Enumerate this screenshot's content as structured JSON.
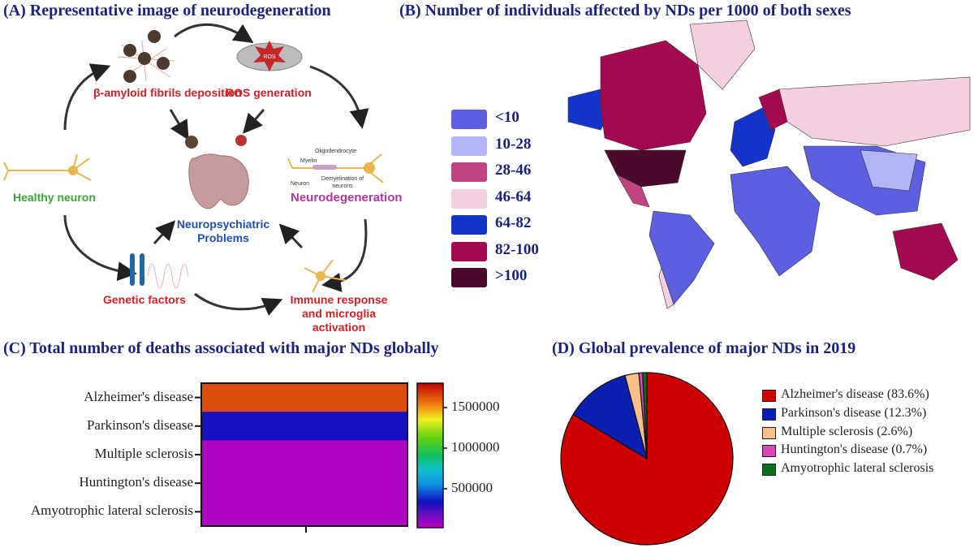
{
  "panel_a": {
    "title": "(A) Representative image of neurodegeneration",
    "labels": {
      "amyloid": "β-amyloid fibrils deposition",
      "ros": "ROS generation",
      "ros_badge": "ROS",
      "healthy": "Healthy neuron",
      "neurodeg": "Neurodegeneration",
      "neuropsych": "Neuropsychiatric Problems",
      "genetic": "Genetic factors",
      "immune": "Immune response and microglia activation",
      "oligo": "Oligodendrocyte",
      "myelin": "Myelin",
      "neuron": "Neuron",
      "demyel": "Demyelination of neurons"
    }
  },
  "panel_b": {
    "title": "(B) Number of individuals affected by NDs per 1000 of both sexes",
    "legend": [
      {
        "label": "<10",
        "color": "#5b5fe0"
      },
      {
        "label": "10-28",
        "color": "#b3b3f7"
      },
      {
        "label": "28-46",
        "color": "#c2447e"
      },
      {
        "label": "46-64",
        "color": "#f3cfdf"
      },
      {
        "label": "64-82",
        "color": "#1433c8"
      },
      {
        "label": "82-100",
        "color": "#a3094f"
      },
      {
        "label": ">100",
        "color": "#4a0a2c"
      }
    ]
  },
  "chart_data": [
    {
      "type": "heatmap",
      "title": "(C) Total number of deaths associated with major NDs globally",
      "categories": [
        "Alzheimer's disease",
        "Parkinson's disease",
        "Multiple sclerosis",
        "Huntington's disease",
        "Amyotrophic lateral sclerosis"
      ],
      "values": [
        1640000,
        330000,
        50000,
        50000,
        50000
      ],
      "colorbar": {
        "ticks": [
          500000,
          1000000,
          1500000
        ],
        "tick_labels": [
          "500000",
          "1000000",
          "1500000"
        ],
        "range": [
          20000,
          1800000
        ]
      }
    },
    {
      "type": "pie",
      "title": "(D) Global prevalence of major NDs in 2019",
      "slices": [
        {
          "label": "Alzheimer's disease (83.6%)",
          "value": 83.6,
          "color": "#cc0000"
        },
        {
          "label": "Parkinson's disease (12.3%)",
          "value": 12.3,
          "color": "#0a1fb0"
        },
        {
          "label": "Multiple sclerosis (2.6%)",
          "value": 2.6,
          "color": "#f7c08a"
        },
        {
          "label": "Huntington's disease (0.7%)",
          "value": 0.7,
          "color": "#d548b8"
        },
        {
          "label": "Amyotrophic lateral sclerosis",
          "value": 0.8,
          "color": "#0a6e1a"
        }
      ],
      "legend": "right"
    }
  ]
}
